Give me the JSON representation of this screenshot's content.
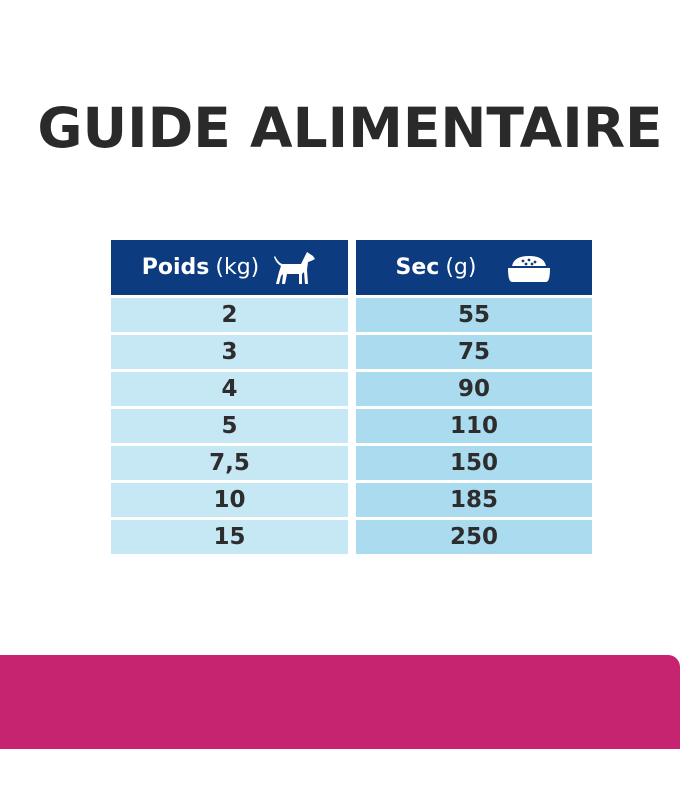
{
  "title": "GUIDE ALIMENTAIRE",
  "table": {
    "headers": [
      {
        "label": "Poids",
        "unit": "(kg)",
        "icon": "dog-icon"
      },
      {
        "label": "Sec",
        "unit": "(g)",
        "icon": "food-bowl-icon"
      }
    ],
    "rows": [
      [
        "2",
        "55"
      ],
      [
        "3",
        "75"
      ],
      [
        "4",
        "90"
      ],
      [
        "5",
        "110"
      ],
      [
        "7,5",
        "150"
      ],
      [
        "10",
        "185"
      ],
      [
        "15",
        "250"
      ]
    ]
  },
  "colors": {
    "header": "#0d3b7f",
    "weight_cell": "#c6e7f4",
    "dry_cell": "#abdbef",
    "banner": "#c62370"
  }
}
